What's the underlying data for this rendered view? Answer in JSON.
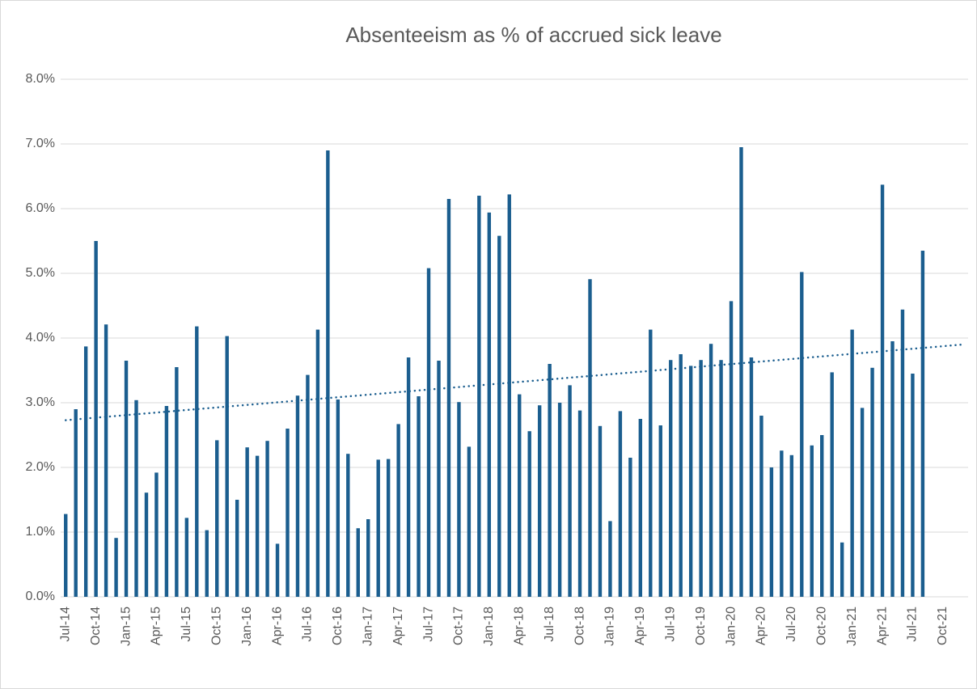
{
  "chart_data": {
    "type": "bar",
    "title": "Absenteeism as % of accrued sick leave",
    "categories": [
      "Jul-14",
      null,
      null,
      "Oct-14",
      null,
      null,
      "Jan-15",
      null,
      null,
      "Apr-15",
      null,
      null,
      "Jul-15",
      null,
      null,
      "Oct-15",
      null,
      null,
      "Jan-16",
      null,
      null,
      "Apr-16",
      null,
      null,
      "Jul-16",
      null,
      null,
      "Oct-16",
      null,
      null,
      "Jan-17",
      null,
      null,
      "Apr-17",
      null,
      null,
      "Jul-17",
      null,
      null,
      "Oct-17",
      null,
      null,
      "Jan-18",
      null,
      null,
      "Apr-18",
      null,
      null,
      "Jul-18",
      null,
      null,
      "Oct-18",
      null,
      null,
      "Jan-19",
      null,
      null,
      "Apr-19",
      null,
      null,
      "Jul-19",
      null,
      null,
      "Oct-19",
      null,
      null,
      "Jan-20",
      null,
      null,
      "Apr-20",
      null,
      null,
      "Jul-20",
      null,
      null,
      "Oct-20",
      null,
      null,
      "Jan-21",
      null,
      null,
      "Apr-21",
      null,
      null,
      "Jul-21",
      null,
      null,
      "Oct-21",
      null,
      null
    ],
    "values": [
      1.28,
      2.9,
      3.87,
      5.5,
      4.21,
      0.91,
      3.65,
      3.04,
      1.61,
      1.92,
      2.95,
      3.55,
      1.22,
      4.18,
      1.03,
      2.42,
      4.03,
      1.5,
      2.31,
      2.18,
      2.41,
      0.82,
      2.6,
      3.11,
      3.43,
      4.13,
      6.9,
      3.05,
      2.21,
      1.06,
      1.2,
      2.12,
      2.13,
      2.67,
      3.7,
      3.1,
      5.08,
      3.65,
      6.15,
      3.01,
      2.32,
      6.2,
      5.94,
      5.58,
      6.22,
      3.13,
      2.56,
      2.96,
      3.6,
      3.0,
      3.27,
      2.88,
      4.91,
      2.64,
      1.17,
      2.87,
      2.15,
      2.75,
      4.13,
      2.65,
      3.66,
      3.75,
      3.57,
      3.66,
      3.91,
      3.66,
      4.57,
      6.95,
      3.7,
      2.8,
      2.0,
      2.26,
      2.19,
      5.02,
      2.34,
      2.5,
      3.47,
      0.84,
      4.13,
      2.92,
      3.54,
      6.37,
      3.95,
      4.44,
      3.45,
      5.35,
      null,
      null,
      null,
      null
    ],
    "color": "#1b5e8f",
    "trendline": {
      "start": 2.73,
      "end": 3.9,
      "color": "#1b5e8f"
    },
    "ylim": [
      0,
      8
    ],
    "yticks": [
      {
        "value": 0,
        "label": "0.0%"
      },
      {
        "value": 1,
        "label": "1.0%"
      },
      {
        "value": 2,
        "label": "2.0%"
      },
      {
        "value": 3,
        "label": "3.0%"
      },
      {
        "value": 4,
        "label": "4.0%"
      },
      {
        "value": 5,
        "label": "5.0%"
      },
      {
        "value": 6,
        "label": "6.0%"
      },
      {
        "value": 7,
        "label": "7.0%"
      },
      {
        "value": 8,
        "label": "8.0%"
      }
    ],
    "grid": true
  }
}
